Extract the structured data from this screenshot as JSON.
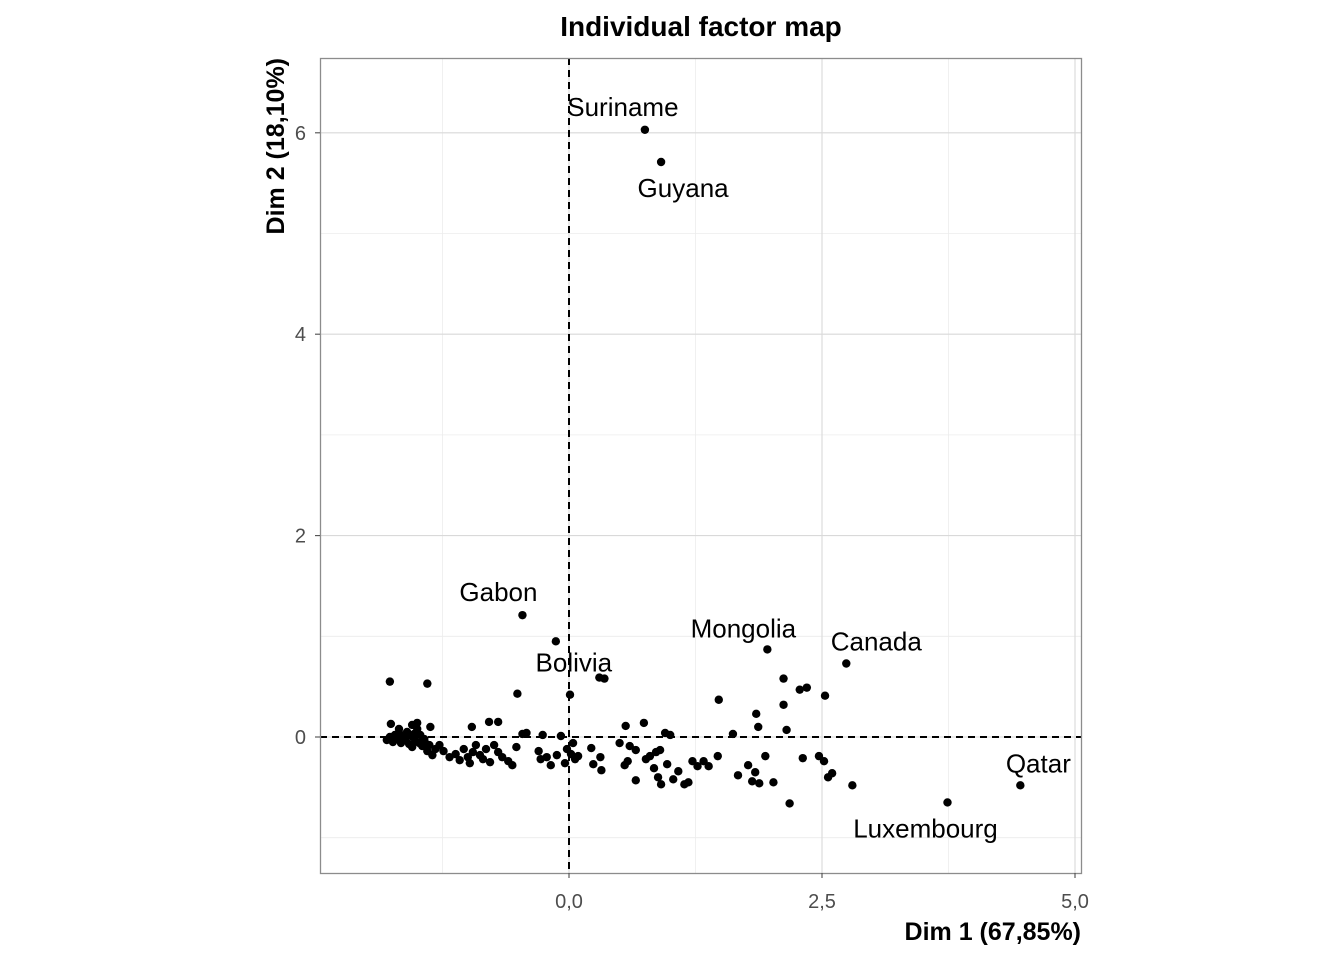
{
  "chart_data": {
    "type": "scatter",
    "title": "Individual factor map",
    "xlabel": "Dim 1 (67,85%)",
    "ylabel": "Dim 2 (18,10%)",
    "xlim": [
      -2.5,
      5.1
    ],
    "ylim": [
      -1.35,
      6.75
    ],
    "x_ticks": [
      0.0,
      2.5,
      5.0
    ],
    "x_tick_labels": [
      "0,0",
      "2,5",
      "5,0"
    ],
    "y_ticks": [
      0,
      2,
      4,
      6
    ],
    "y_tick_labels": [
      "0",
      "2",
      "4",
      "6"
    ],
    "reference_lines": {
      "x": 0,
      "y": 0
    },
    "grid": true,
    "labeled_points": [
      {
        "name": "Suriname",
        "x": 0.75,
        "y": 6.03
      },
      {
        "name": "Guyana",
        "x": 0.91,
        "y": 5.71
      },
      {
        "name": "Gabon",
        "x": -0.46,
        "y": 1.21
      },
      {
        "name": "Bolivia",
        "x": -0.13,
        "y": 0.95
      },
      {
        "name": "Mongolia",
        "x": 1.96,
        "y": 0.87
      },
      {
        "name": "Canada",
        "x": 2.74,
        "y": 0.73
      },
      {
        "name": "Qatar",
        "x": 4.46,
        "y": -0.48
      },
      {
        "name": "Luxembourg",
        "x": 3.74,
        "y": -0.65
      }
    ],
    "points": [
      [
        -1.77,
        0.55
      ],
      [
        -1.4,
        0.53
      ],
      [
        -0.51,
        0.43
      ],
      [
        0.01,
        0.42
      ],
      [
        0.3,
        0.59
      ],
      [
        0.35,
        0.58
      ],
      [
        1.48,
        0.37
      ],
      [
        1.85,
        0.23
      ],
      [
        1.87,
        0.1
      ],
      [
        2.12,
        0.58
      ],
      [
        2.12,
        0.32
      ],
      [
        2.28,
        0.47
      ],
      [
        2.35,
        0.49
      ],
      [
        2.53,
        0.41
      ],
      [
        2.15,
        0.07
      ],
      [
        -1.76,
        0.13
      ],
      [
        -1.68,
        0.08
      ],
      [
        -1.55,
        0.12
      ],
      [
        -1.5,
        0.14
      ],
      [
        -1.37,
        0.1
      ],
      [
        -0.96,
        0.1
      ],
      [
        -0.79,
        0.15
      ],
      [
        -0.7,
        0.15
      ],
      [
        -0.46,
        0.03
      ],
      [
        0.56,
        0.11
      ],
      [
        0.74,
        0.14
      ],
      [
        0.95,
        0.04
      ],
      [
        1.0,
        0.02
      ],
      [
        1.62,
        0.03
      ],
      [
        -1.8,
        -0.03
      ],
      [
        -1.77,
        0.0
      ],
      [
        -1.74,
        -0.05
      ],
      [
        -1.72,
        0.02
      ],
      [
        -1.7,
        -0.02
      ],
      [
        -1.68,
        0.04
      ],
      [
        -1.66,
        -0.06
      ],
      [
        -1.64,
        0.0
      ],
      [
        -1.62,
        -0.03
      ],
      [
        -1.6,
        0.05
      ],
      [
        -1.58,
        -0.07
      ],
      [
        -1.56,
        0.01
      ],
      [
        -1.55,
        -0.1
      ],
      [
        -1.53,
        0.03
      ],
      [
        -1.52,
        -0.04
      ],
      [
        -1.5,
        0.08
      ],
      [
        -1.48,
        -0.06
      ],
      [
        -1.47,
        0.02
      ],
      [
        -1.45,
        -0.09
      ],
      [
        -1.43,
        -0.02
      ],
      [
        -1.42,
        -0.06
      ],
      [
        -1.4,
        -0.14
      ],
      [
        -1.38,
        -0.08
      ],
      [
        -1.35,
        -0.18
      ],
      [
        -1.32,
        -0.12
      ],
      [
        -1.28,
        -0.08
      ],
      [
        -1.24,
        -0.14
      ],
      [
        -1.18,
        -0.2
      ],
      [
        -1.12,
        -0.17
      ],
      [
        -1.08,
        -0.23
      ],
      [
        -1.04,
        -0.12
      ],
      [
        -1.0,
        -0.2
      ],
      [
        -0.98,
        -0.26
      ],
      [
        -0.95,
        -0.15
      ],
      [
        -0.92,
        -0.08
      ],
      [
        -0.88,
        -0.18
      ],
      [
        -0.85,
        -0.22
      ],
      [
        -0.82,
        -0.12
      ],
      [
        -0.78,
        -0.25
      ],
      [
        -0.74,
        -0.08
      ],
      [
        -0.7,
        -0.15
      ],
      [
        -0.66,
        -0.2
      ],
      [
        -0.6,
        -0.24
      ],
      [
        -0.56,
        -0.28
      ],
      [
        -0.52,
        -0.1
      ],
      [
        -0.42,
        0.04
      ],
      [
        -0.3,
        -0.14
      ],
      [
        -0.26,
        0.02
      ],
      [
        -0.28,
        -0.22
      ],
      [
        -0.22,
        -0.2
      ],
      [
        -0.18,
        -0.28
      ],
      [
        -0.12,
        -0.18
      ],
      [
        -0.08,
        0.01
      ],
      [
        -0.04,
        -0.26
      ],
      [
        -0.02,
        -0.12
      ],
      [
        0.02,
        -0.17
      ],
      [
        0.04,
        -0.06
      ],
      [
        0.06,
        -0.22
      ],
      [
        0.09,
        -0.19
      ],
      [
        0.22,
        -0.11
      ],
      [
        0.24,
        -0.27
      ],
      [
        0.31,
        -0.2
      ],
      [
        0.32,
        -0.33
      ],
      [
        0.5,
        -0.06
      ],
      [
        0.55,
        -0.28
      ],
      [
        0.58,
        -0.24
      ],
      [
        0.6,
        -0.09
      ],
      [
        0.66,
        -0.13
      ],
      [
        0.66,
        -0.43
      ],
      [
        0.76,
        -0.22
      ],
      [
        0.8,
        -0.19
      ],
      [
        0.84,
        -0.31
      ],
      [
        0.86,
        -0.15
      ],
      [
        0.88,
        -0.4
      ],
      [
        0.91,
        -0.47
      ],
      [
        0.9,
        -0.13
      ],
      [
        0.97,
        -0.27
      ],
      [
        1.03,
        -0.42
      ],
      [
        1.08,
        -0.34
      ],
      [
        1.14,
        -0.47
      ],
      [
        1.18,
        -0.45
      ],
      [
        1.22,
        -0.24
      ],
      [
        1.27,
        -0.29
      ],
      [
        1.33,
        -0.24
      ],
      [
        1.38,
        -0.29
      ],
      [
        1.47,
        -0.19
      ],
      [
        1.67,
        -0.38
      ],
      [
        1.77,
        -0.28
      ],
      [
        1.81,
        -0.44
      ],
      [
        1.84,
        -0.35
      ],
      [
        1.88,
        -0.46
      ],
      [
        1.94,
        -0.19
      ],
      [
        2.02,
        -0.45
      ],
      [
        2.18,
        -0.66
      ],
      [
        2.31,
        -0.21
      ],
      [
        2.47,
        -0.19
      ],
      [
        2.52,
        -0.24
      ],
      [
        2.56,
        -0.4
      ],
      [
        2.6,
        -0.36
      ],
      [
        2.8,
        -0.48
      ]
    ]
  }
}
